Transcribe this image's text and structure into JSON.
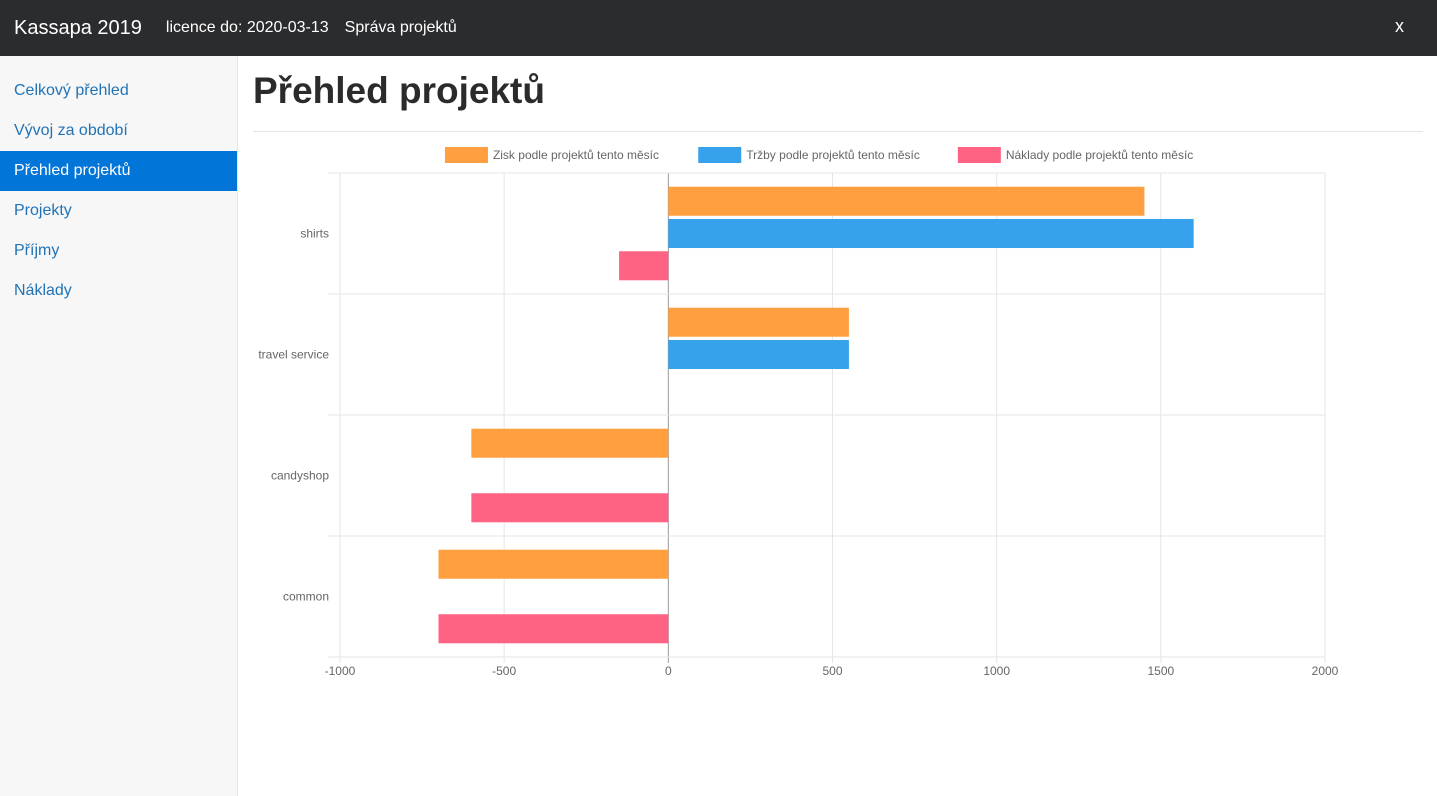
{
  "app": {
    "title": "Kassapa 2019",
    "license": "licence do: 2020-03-13",
    "nav_link": "Správa projektů",
    "close_label": "x"
  },
  "sidebar": {
    "items": [
      {
        "label": "Celkový přehled",
        "active": false
      },
      {
        "label": "Vývoj za období",
        "active": false
      },
      {
        "label": "Přehled projektů",
        "active": true
      },
      {
        "label": "Projekty",
        "active": false
      },
      {
        "label": "Příjmy",
        "active": false
      },
      {
        "label": "Náklady",
        "active": false
      }
    ]
  },
  "main": {
    "title": "Přehled projektů"
  },
  "chart_data": {
    "type": "bar",
    "orientation": "horizontal",
    "categories": [
      "shirts",
      "travel service",
      "candyshop",
      "common"
    ],
    "series": [
      {
        "name": "Zisk podle projektů tento měsíc",
        "color": "#ff9f40",
        "values": [
          1450,
          550,
          -600,
          -700
        ]
      },
      {
        "name": "Tržby podle projektů tento měsíc",
        "color": "#36a2eb",
        "values": [
          1600,
          550,
          0,
          0
        ]
      },
      {
        "name": "Náklady podle projektů tento měsíc",
        "color": "#ff6384",
        "values": [
          -150,
          0,
          -600,
          -700
        ]
      }
    ],
    "xlim": [
      -1000,
      2000
    ],
    "xticks": [
      -1000,
      -500,
      0,
      500,
      1000,
      1500,
      2000
    ],
    "grid": true,
    "legend_position": "top"
  }
}
